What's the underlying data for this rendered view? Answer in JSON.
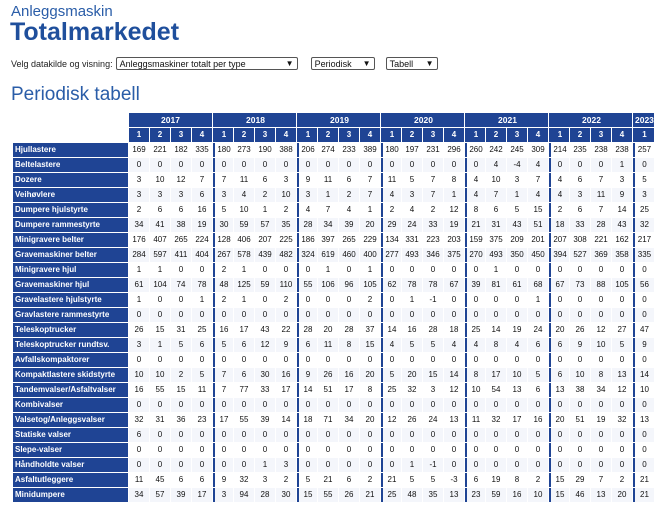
{
  "header": {
    "subtitle": "Anleggsmaskin",
    "title": "Totalmarkedet"
  },
  "controls": {
    "label": "Velg datakilde og visning:",
    "source": "Anleggsmaskiner totalt per type",
    "period": "Periodisk",
    "view": "Tabell"
  },
  "section_title": "Periodisk tabell",
  "table": {
    "years": [
      {
        "label": "2017",
        "quarters": [
          "1",
          "2",
          "3",
          "4"
        ]
      },
      {
        "label": "2018",
        "quarters": [
          "1",
          "2",
          "3",
          "4"
        ]
      },
      {
        "label": "2019",
        "quarters": [
          "1",
          "2",
          "3",
          "4"
        ]
      },
      {
        "label": "2020",
        "quarters": [
          "1",
          "2",
          "3",
          "4"
        ]
      },
      {
        "label": "2021",
        "quarters": [
          "1",
          "2",
          "3",
          "4"
        ]
      },
      {
        "label": "2022",
        "quarters": [
          "1",
          "2",
          "3",
          "4"
        ]
      },
      {
        "label": "2023",
        "quarters": [
          "1"
        ]
      }
    ],
    "rows": [
      {
        "label": "Hjullastere",
        "values": [
          "169",
          "221",
          "182",
          "335",
          "180",
          "273",
          "190",
          "388",
          "206",
          "274",
          "233",
          "389",
          "180",
          "197",
          "231",
          "296",
          "260",
          "242",
          "245",
          "309",
          "214",
          "235",
          "238",
          "238",
          "257"
        ]
      },
      {
        "label": "Beltelastere",
        "values": [
          "0",
          "0",
          "0",
          "0",
          "0",
          "0",
          "0",
          "0",
          "0",
          "0",
          "0",
          "0",
          "0",
          "0",
          "0",
          "0",
          "0",
          "4",
          "-4",
          "4",
          "0",
          "0",
          "0",
          "1",
          "0"
        ]
      },
      {
        "label": "Dozere",
        "values": [
          "3",
          "10",
          "12",
          "7",
          "7",
          "11",
          "6",
          "3",
          "9",
          "11",
          "6",
          "7",
          "11",
          "5",
          "7",
          "8",
          "4",
          "10",
          "3",
          "7",
          "4",
          "6",
          "7",
          "3",
          "5"
        ]
      },
      {
        "label": "Veihøvlere",
        "values": [
          "3",
          "3",
          "3",
          "6",
          "3",
          "4",
          "2",
          "10",
          "3",
          "1",
          "2",
          "7",
          "4",
          "3",
          "7",
          "1",
          "4",
          "7",
          "1",
          "4",
          "4",
          "3",
          "11",
          "9",
          "3"
        ]
      },
      {
        "label": "Dumpere hjulstyrte",
        "values": [
          "2",
          "6",
          "6",
          "16",
          "5",
          "10",
          "1",
          "2",
          "4",
          "7",
          "4",
          "1",
          "2",
          "4",
          "2",
          "12",
          "8",
          "6",
          "5",
          "15",
          "2",
          "6",
          "7",
          "14",
          "25"
        ]
      },
      {
        "label": "Dumpere rammestyrte",
        "values": [
          "34",
          "41",
          "38",
          "19",
          "30",
          "59",
          "57",
          "35",
          "28",
          "34",
          "39",
          "20",
          "29",
          "24",
          "33",
          "19",
          "21",
          "31",
          "43",
          "51",
          "18",
          "33",
          "28",
          "43",
          "32"
        ]
      },
      {
        "label": "Minigravere belter",
        "values": [
          "176",
          "407",
          "265",
          "224",
          "128",
          "406",
          "207",
          "225",
          "186",
          "397",
          "265",
          "229",
          "134",
          "331",
          "223",
          "203",
          "159",
          "375",
          "209",
          "201",
          "207",
          "308",
          "221",
          "162",
          "217"
        ]
      },
      {
        "label": "Gravemaskiner belter",
        "values": [
          "284",
          "597",
          "411",
          "404",
          "267",
          "578",
          "439",
          "482",
          "324",
          "619",
          "460",
          "400",
          "277",
          "493",
          "346",
          "375",
          "270",
          "493",
          "350",
          "450",
          "394",
          "527",
          "369",
          "358",
          "335"
        ]
      },
      {
        "label": "Minigravere hjul",
        "values": [
          "1",
          "1",
          "0",
          "0",
          "2",
          "1",
          "0",
          "0",
          "0",
          "1",
          "0",
          "1",
          "0",
          "0",
          "0",
          "0",
          "0",
          "1",
          "0",
          "0",
          "0",
          "0",
          "0",
          "0",
          "0"
        ]
      },
      {
        "label": "Gravemaskiner hjul",
        "values": [
          "61",
          "104",
          "74",
          "78",
          "48",
          "125",
          "59",
          "110",
          "55",
          "106",
          "96",
          "105",
          "62",
          "78",
          "78",
          "67",
          "39",
          "81",
          "61",
          "68",
          "67",
          "73",
          "88",
          "105",
          "56"
        ]
      },
      {
        "label": "Gravelastere hjulstyrte",
        "values": [
          "1",
          "0",
          "0",
          "1",
          "2",
          "1",
          "0",
          "2",
          "0",
          "0",
          "0",
          "2",
          "0",
          "1",
          "-1",
          "0",
          "0",
          "0",
          "0",
          "1",
          "0",
          "0",
          "0",
          "0",
          "0"
        ]
      },
      {
        "label": "Gravlastere rammestyrte",
        "values": [
          "0",
          "0",
          "0",
          "0",
          "0",
          "0",
          "0",
          "0",
          "0",
          "0",
          "0",
          "0",
          "0",
          "0",
          "0",
          "0",
          "0",
          "0",
          "0",
          "0",
          "0",
          "0",
          "0",
          "0",
          "0"
        ]
      },
      {
        "label": "Teleskoptrucker",
        "values": [
          "26",
          "15",
          "31",
          "25",
          "16",
          "17",
          "43",
          "22",
          "28",
          "20",
          "28",
          "37",
          "14",
          "16",
          "28",
          "18",
          "25",
          "14",
          "19",
          "24",
          "20",
          "26",
          "12",
          "27",
          "47"
        ]
      },
      {
        "label": "Teleskoptrucker rundtsv.",
        "values": [
          "3",
          "1",
          "5",
          "6",
          "5",
          "6",
          "12",
          "9",
          "6",
          "11",
          "8",
          "15",
          "4",
          "5",
          "5",
          "4",
          "4",
          "8",
          "4",
          "6",
          "6",
          "9",
          "10",
          "5",
          "9"
        ]
      },
      {
        "label": "Avfallskompaktorer",
        "values": [
          "0",
          "0",
          "0",
          "0",
          "0",
          "0",
          "0",
          "0",
          "0",
          "0",
          "0",
          "0",
          "0",
          "0",
          "0",
          "0",
          "0",
          "0",
          "0",
          "0",
          "0",
          "0",
          "0",
          "0",
          "0"
        ]
      },
      {
        "label": "Kompaktlastere skidstyrte",
        "values": [
          "10",
          "10",
          "2",
          "5",
          "7",
          "6",
          "30",
          "16",
          "9",
          "26",
          "16",
          "20",
          "5",
          "20",
          "15",
          "14",
          "8",
          "17",
          "10",
          "5",
          "6",
          "10",
          "8",
          "13",
          "14"
        ]
      },
      {
        "label": "Tandemvalser/Asfaltvalser",
        "values": [
          "16",
          "55",
          "15",
          "11",
          "7",
          "77",
          "33",
          "17",
          "14",
          "51",
          "17",
          "8",
          "25",
          "32",
          "3",
          "12",
          "10",
          "54",
          "13",
          "6",
          "13",
          "38",
          "34",
          "12",
          "10"
        ]
      },
      {
        "label": "Kombivalser",
        "values": [
          "0",
          "0",
          "0",
          "0",
          "0",
          "0",
          "0",
          "0",
          "0",
          "0",
          "0",
          "0",
          "0",
          "0",
          "0",
          "0",
          "0",
          "0",
          "0",
          "0",
          "0",
          "0",
          "0",
          "0",
          "0"
        ]
      },
      {
        "label": "Valsetog/Anleggsvalser",
        "values": [
          "32",
          "31",
          "36",
          "23",
          "17",
          "55",
          "39",
          "14",
          "18",
          "71",
          "34",
          "20",
          "12",
          "26",
          "24",
          "13",
          "11",
          "32",
          "17",
          "16",
          "20",
          "51",
          "19",
          "32",
          "13"
        ]
      },
      {
        "label": "Statiske valser",
        "values": [
          "6",
          "0",
          "0",
          "0",
          "0",
          "0",
          "0",
          "0",
          "0",
          "0",
          "0",
          "0",
          "0",
          "0",
          "0",
          "0",
          "0",
          "0",
          "0",
          "0",
          "0",
          "0",
          "0",
          "0",
          "0"
        ]
      },
      {
        "label": "Slepe-valser",
        "values": [
          "0",
          "0",
          "0",
          "0",
          "0",
          "0",
          "0",
          "0",
          "0",
          "0",
          "0",
          "0",
          "0",
          "0",
          "0",
          "0",
          "0",
          "0",
          "0",
          "0",
          "0",
          "0",
          "0",
          "0",
          "0"
        ]
      },
      {
        "label": "Håndholdte valser",
        "values": [
          "0",
          "0",
          "0",
          "0",
          "0",
          "0",
          "1",
          "3",
          "0",
          "0",
          "0",
          "0",
          "0",
          "1",
          "-1",
          "0",
          "0",
          "0",
          "0",
          "0",
          "0",
          "0",
          "0",
          "0",
          "0"
        ]
      },
      {
        "label": "Asfaltutleggere",
        "values": [
          "11",
          "45",
          "6",
          "6",
          "9",
          "32",
          "3",
          "2",
          "5",
          "21",
          "6",
          "2",
          "21",
          "5",
          "5",
          "-3",
          "6",
          "19",
          "8",
          "2",
          "15",
          "29",
          "7",
          "2",
          "21"
        ]
      },
      {
        "label": "Minidumpere",
        "values": [
          "34",
          "57",
          "39",
          "17",
          "3",
          "94",
          "28",
          "30",
          "15",
          "55",
          "26",
          "21",
          "25",
          "48",
          "35",
          "13",
          "23",
          "59",
          "16",
          "10",
          "15",
          "46",
          "13",
          "20",
          "21"
        ]
      }
    ]
  }
}
